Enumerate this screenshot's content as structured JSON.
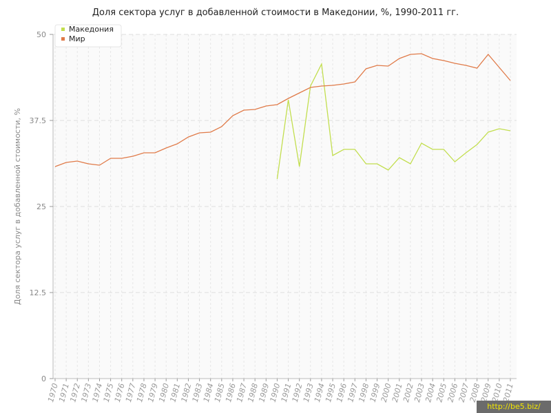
{
  "chart_data": {
    "type": "line",
    "title": "Доля сектора услуг в добавленной стоимости в Македонии, %, 1990-2011 гг.",
    "xlabel": "",
    "ylabel": "Доля сектора услуг в добавленной стоимости, %",
    "ylim": [
      0,
      50
    ],
    "yticks": [
      "0",
      "12.5",
      "25",
      "37.5",
      "50"
    ],
    "x": [
      1970,
      1971,
      1972,
      1973,
      1974,
      1975,
      1976,
      1977,
      1978,
      1979,
      1980,
      1981,
      1982,
      1983,
      1984,
      1985,
      1986,
      1987,
      1988,
      1989,
      1990,
      1991,
      1992,
      1993,
      1994,
      1995,
      1996,
      1997,
      1998,
      1999,
      2000,
      2001,
      2002,
      2003,
      2004,
      2005,
      2006,
      2007,
      2008,
      2009,
      2010,
      2011
    ],
    "grid": true,
    "legend": "top-left",
    "series": [
      {
        "name": "Македония",
        "color": "#c2de4e",
        "values": [
          null,
          null,
          null,
          null,
          null,
          null,
          null,
          null,
          null,
          null,
          null,
          null,
          null,
          null,
          null,
          null,
          null,
          null,
          null,
          null,
          29.0,
          40.5,
          30.8,
          42.5,
          45.7,
          32.4,
          33.3,
          33.3,
          31.2,
          31.2,
          30.3,
          32.1,
          31.2,
          34.2,
          33.3,
          33.3,
          31.5,
          32.8,
          34.0,
          35.8,
          36.3,
          36.0
        ]
      },
      {
        "name": "Мир",
        "color": "#e07a48",
        "values": [
          30.8,
          31.4,
          31.6,
          31.2,
          31.0,
          32.0,
          32.0,
          32.3,
          32.8,
          32.8,
          33.5,
          34.1,
          35.1,
          35.7,
          35.8,
          36.6,
          38.2,
          39.0,
          39.1,
          39.6,
          39.8,
          40.7,
          41.5,
          42.3,
          42.5,
          42.6,
          42.8,
          43.1,
          45.0,
          45.5,
          45.4,
          46.5,
          47.1,
          47.2,
          46.5,
          46.2,
          45.8,
          45.5,
          45.1,
          47.1,
          45.2,
          43.3
        ]
      }
    ]
  },
  "watermark": "http://be5.biz/"
}
